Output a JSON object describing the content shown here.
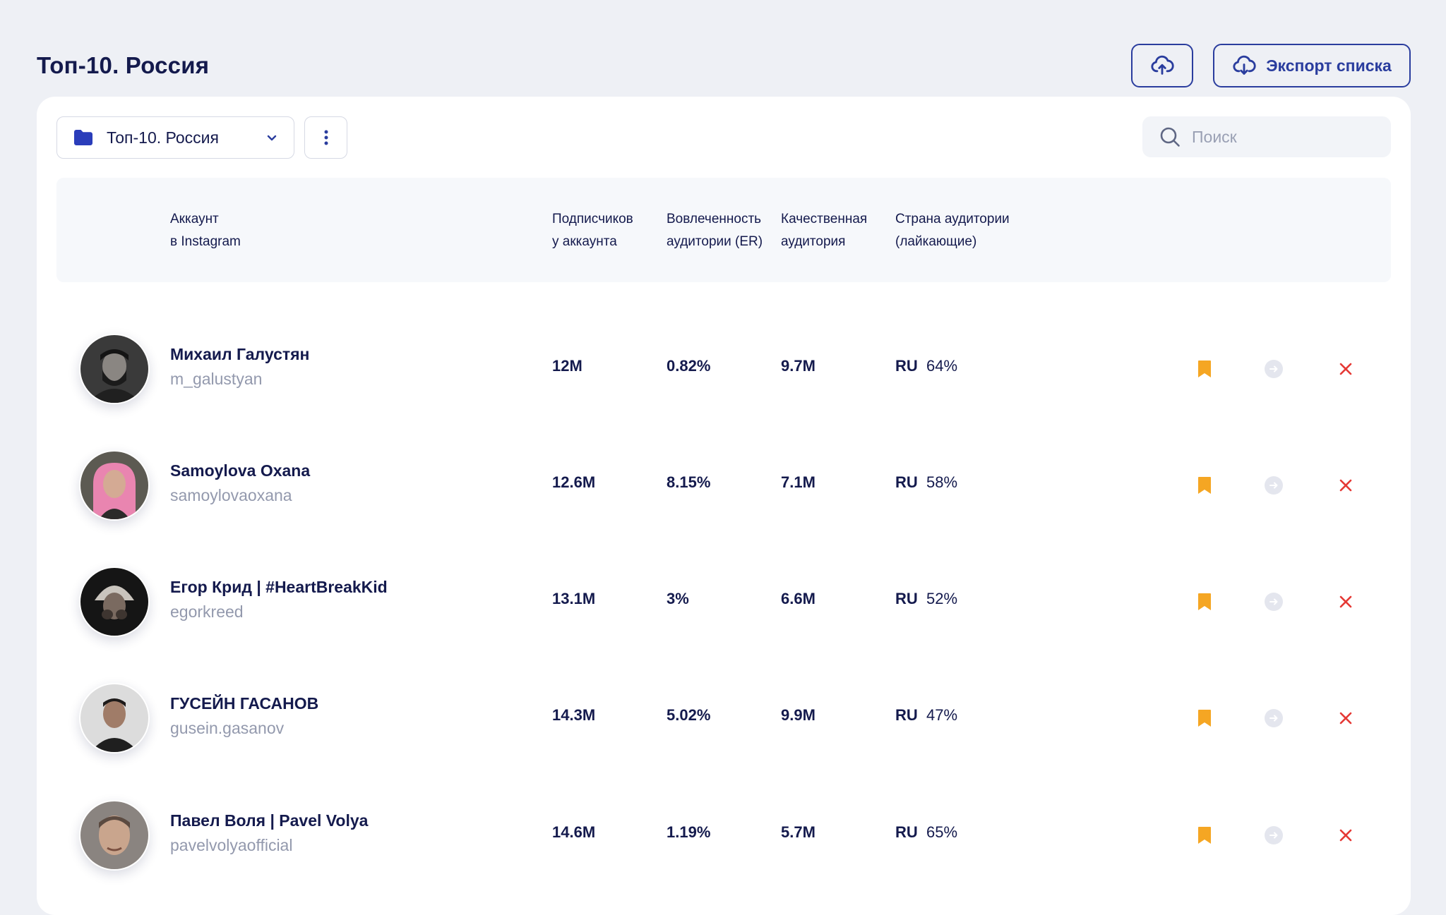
{
  "page": {
    "title": "Топ-10. Россия",
    "export_label": "Экспорт списка"
  },
  "toolbar": {
    "folder_label": "Топ-10. Россия",
    "search_placeholder": "Поиск"
  },
  "columns": {
    "account": [
      "Аккаунт",
      "в Instagram"
    ],
    "subscribers": [
      "Подписчиков",
      "у аккаунта"
    ],
    "engagement": [
      "Вовлеченность",
      "аудитории (ER)"
    ],
    "quality": [
      "Качественная",
      "аудитория"
    ],
    "country": [
      "Страна аудитории",
      "(лайкающие)"
    ]
  },
  "rows": [
    {
      "name": "Михаил Галустян",
      "handle": "m_galustyan",
      "subscribers": "12M",
      "er": "0.82%",
      "quality": "9.7M",
      "country": "RU",
      "country_pct": "64%"
    },
    {
      "name": "Samoylova Oxana",
      "handle": "samoylovaoxana",
      "subscribers": "12.6M",
      "er": "8.15%",
      "quality": "7.1M",
      "country": "RU",
      "country_pct": "58%"
    },
    {
      "name": "Егор Крид | #HeartBreakKid",
      "handle": "egorkreed",
      "subscribers": "13.1M",
      "er": "3%",
      "quality": "6.6M",
      "country": "RU",
      "country_pct": "52%"
    },
    {
      "name": "ГУСЕЙН ГАСАНОВ",
      "handle": "gusein.gasanov",
      "subscribers": "14.3M",
      "er": "5.02%",
      "quality": "9.9M",
      "country": "RU",
      "country_pct": "47%"
    },
    {
      "name": "Павел Воля | Pavel Volya",
      "handle": "pavelvolyaofficial",
      "subscribers": "14.6M",
      "er": "1.19%",
      "quality": "5.7M",
      "country": "RU",
      "country_pct": "65%"
    }
  ],
  "icons": {
    "upload": "cloud-upload-icon",
    "export": "cloud-download-icon",
    "folder": "folder-icon",
    "dropdown": "chevron-down-icon",
    "more": "vertical-dots-icon",
    "search": "search-icon",
    "bookmark": "bookmark-icon",
    "go": "arrow-right-circle-icon",
    "remove": "close-icon"
  },
  "colors": {
    "primary": "#2a3d9e",
    "text": "#141a4d",
    "muted": "#9399ad",
    "bookmark": "#f5a623",
    "remove": "#e53935",
    "go": "#e4e6ee",
    "background": "#eef0f5"
  }
}
